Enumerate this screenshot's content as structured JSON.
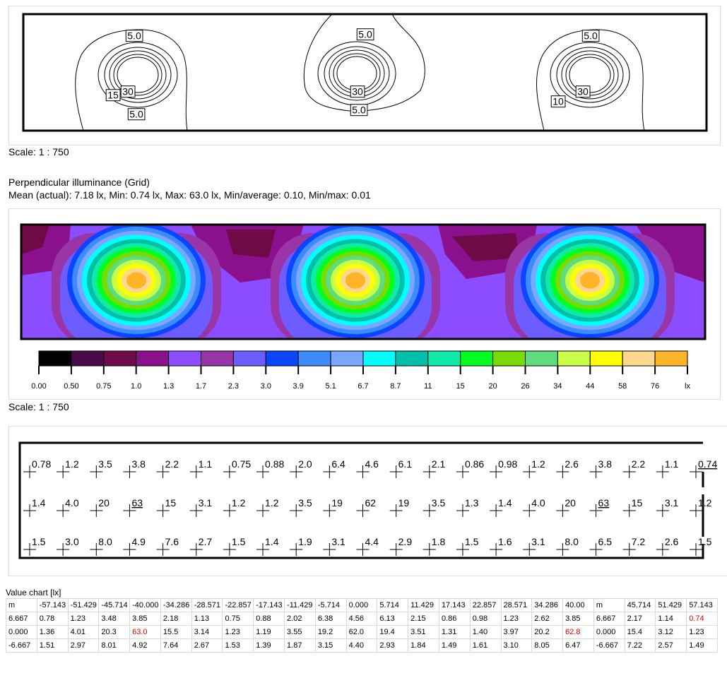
{
  "isolines": {
    "labels": [
      "5.0",
      "15",
      "30",
      "5.0",
      "5.0",
      "30",
      "5.0",
      "5.0",
      "10",
      "30"
    ]
  },
  "scale_top": "Scale: 1 : 750",
  "title": "Perpendicular illuminance (Grid)",
  "stats": "Mean (actual): 7.18 lx, Min: 0.74 lx, Max: 63.0 lx, Min/average: 0.10, Min/max: 0.01",
  "legend": {
    "labels": [
      "0.00",
      "0.50",
      "0.75",
      "1.0",
      "1.3",
      "1.7",
      "2.3",
      "3.0",
      "3.9",
      "5.1",
      "6.7",
      "8.7",
      "11",
      "15",
      "20",
      "26",
      "34",
      "44",
      "58",
      "76",
      "lx"
    ],
    "colors": [
      "#000000",
      "#4a0a4a",
      "#6e0a45",
      "#8a108e",
      "#8c4cff",
      "#9a35a8",
      "#6d5cff",
      "#0a46ff",
      "#3c8cff",
      "#7aa8ff",
      "#00ffff",
      "#00c0a8",
      "#10eaa8",
      "#00ff20",
      "#78dc00",
      "#5edc80",
      "#c8ff46",
      "#ffff00",
      "#ffd890",
      "#ffb428"
    ]
  },
  "scale_mid": "Scale: 1 : 750",
  "grid_values": {
    "rows": [
      [
        "0.78",
        "1.2",
        "3.5",
        "3.8",
        "2.2",
        "1.1",
        "0.75",
        "0.88",
        "2.0",
        "6.4",
        "4.6",
        "6.1",
        "2.1",
        "0.86",
        "0.98",
        "1.2",
        "2.6",
        "3.8",
        "2.2",
        "1.1",
        "0.74"
      ],
      [
        "1.4",
        "4.0",
        "20",
        "63",
        "15",
        "3.1",
        "1.2",
        "1.2",
        "3.5",
        "19",
        "62",
        "19",
        "3.5",
        "1.3",
        "1.4",
        "4.0",
        "20",
        "63",
        "15",
        "3.1",
        "1.2"
      ],
      [
        "1.5",
        "3.0",
        "8.0",
        "4.9",
        "7.6",
        "2.7",
        "1.5",
        "1.4",
        "1.9",
        "3.1",
        "4.4",
        "2.9",
        "1.8",
        "1.5",
        "1.6",
        "3.1",
        "8.0",
        "6.5",
        "7.2",
        "2.6",
        "1.5"
      ]
    ],
    "underlined": [
      [
        0,
        20
      ],
      [
        1,
        3
      ],
      [
        1,
        17
      ]
    ]
  },
  "value_chart": {
    "title": "Value chart [lx]",
    "header": [
      "m",
      "-57.143",
      "-51.429",
      "-45.714",
      "-40.000",
      "-34.286",
      "-28.571",
      "-22.857",
      "-17.143",
      "-11.429",
      "-5.714",
      "0.000",
      "5.714",
      "11.429",
      "17.143",
      "22.857",
      "28.571",
      "34.286",
      "40.00",
      "m",
      "45.714",
      "51.429",
      "57.143"
    ],
    "rows": [
      [
        "6.667",
        "0.78",
        "1.23",
        "3.48",
        "3.85",
        "2.18",
        "1.13",
        "0.75",
        "0.88",
        "2.02",
        "6.38",
        "4.56",
        "6.13",
        "2.15",
        "0.86",
        "0.98",
        "1.23",
        "2.62",
        "3.85",
        "6.667",
        "2.17",
        "1.14",
        "0.74"
      ],
      [
        "0.000",
        "1.36",
        "4.01",
        "20.3",
        "63.0",
        "15.5",
        "3.14",
        "1.23",
        "1.19",
        "3.55",
        "19.2",
        "62.0",
        "19.4",
        "3.51",
        "1.31",
        "1.40",
        "3.97",
        "20.2",
        "62.8",
        "0.000",
        "15.4",
        "3.12",
        "1.23"
      ],
      [
        "-6.667",
        "1.51",
        "2.97",
        "8.01",
        "4.92",
        "7.64",
        "2.67",
        "1.53",
        "1.39",
        "1.87",
        "3.15",
        "4.40",
        "2.93",
        "1.84",
        "1.49",
        "1.61",
        "3.10",
        "8.05",
        "6.47",
        "-6.667",
        "7.22",
        "2.57",
        "1.49"
      ]
    ],
    "highlight_color": "#e00000",
    "highlighted": [
      [
        0,
        22
      ],
      [
        1,
        4
      ],
      [
        1,
        18
      ]
    ]
  }
}
